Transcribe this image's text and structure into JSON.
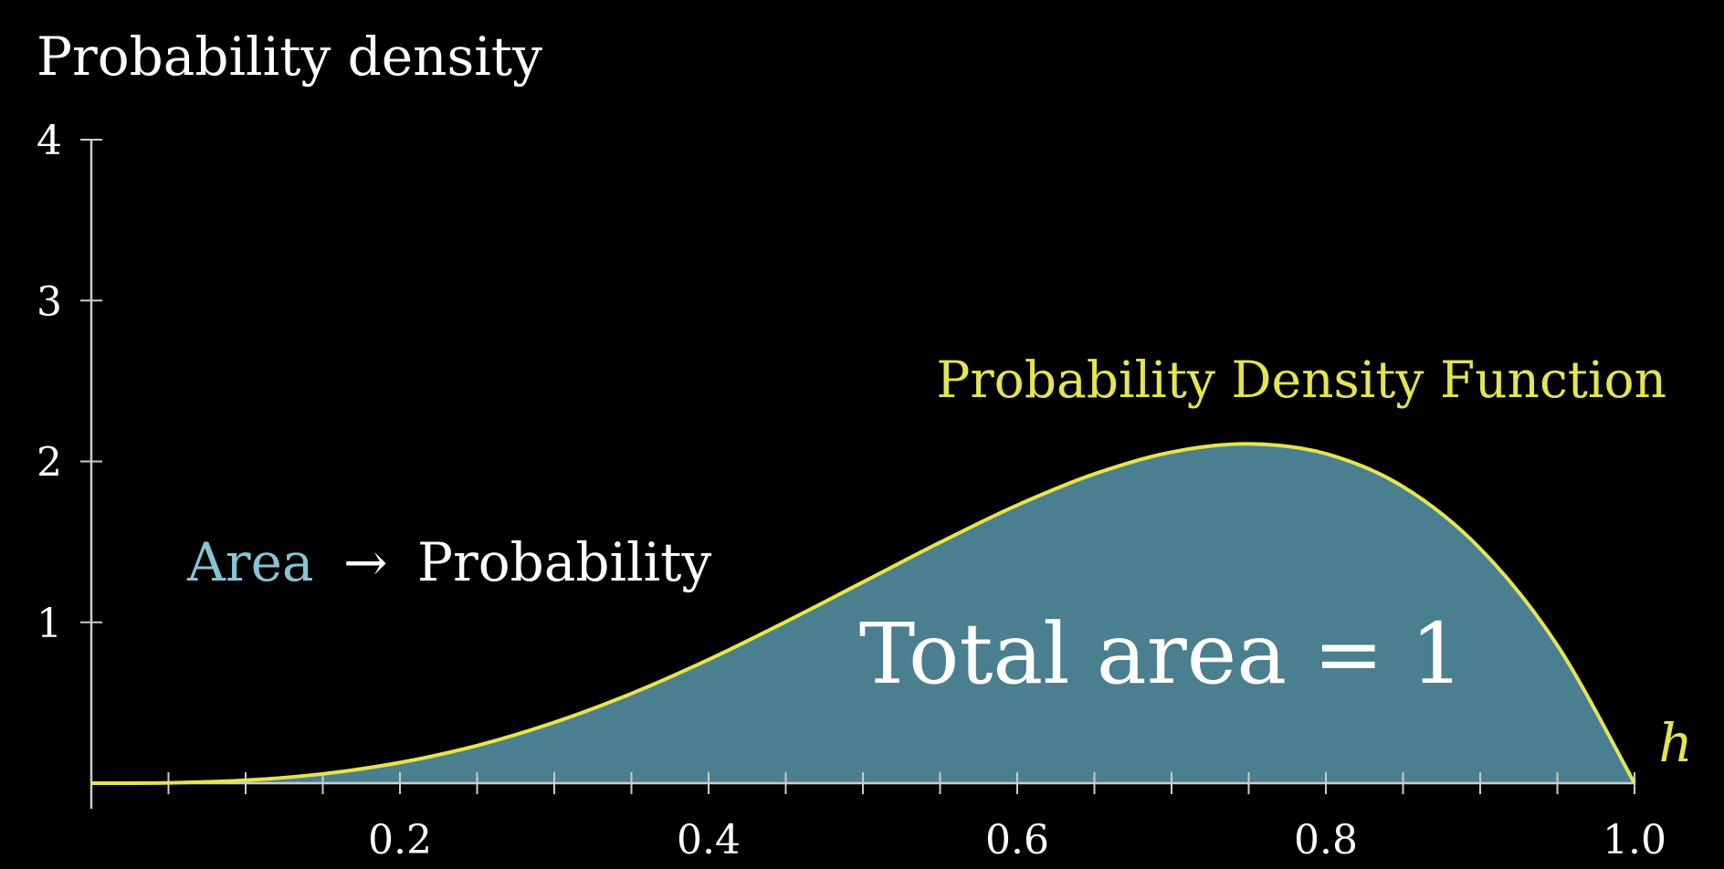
{
  "chart_data": {
    "type": "area",
    "title": "",
    "ylabel": "Probability density",
    "xlabel": "h",
    "xlim": [
      0,
      1
    ],
    "ylim": [
      0,
      4
    ],
    "x_ticks": [
      0.2,
      0.4,
      0.6,
      0.8,
      1.0
    ],
    "x_tick_labels": [
      "0.2",
      "0.4",
      "0.6",
      "0.8",
      "1.0"
    ],
    "x_minor_step": 0.05,
    "y_ticks": [
      1,
      2,
      3,
      4
    ],
    "y_tick_labels": [
      "1",
      "2",
      "3",
      "4"
    ],
    "grid": false,
    "series": [
      {
        "name": "Probability Density Function",
        "x": [
          0,
          0.05,
          0.1,
          0.15,
          0.2,
          0.25,
          0.3,
          0.35,
          0.4,
          0.45,
          0.5,
          0.55,
          0.6,
          0.65,
          0.7,
          0.75,
          0.8,
          0.85,
          0.9,
          0.95,
          1.0
        ],
        "y": [
          0,
          0.0024,
          0.018,
          0.058,
          0.128,
          0.234,
          0.378,
          0.557,
          0.768,
          1.003,
          1.25,
          1.497,
          1.728,
          1.922,
          2.058,
          2.109,
          2.048,
          1.843,
          1.458,
          0.857,
          0
        ]
      }
    ],
    "annotations": {
      "area_word": "Area",
      "arrow": "→",
      "probability_word": "Probability",
      "total_area": "Total area = 1"
    },
    "colors": {
      "background": "#000000",
      "curve": "#e6e44f",
      "fill": "#4a7f8f",
      "area_text": "#86c4d6",
      "text": "#ffffff",
      "axis": "#cccccc"
    }
  }
}
